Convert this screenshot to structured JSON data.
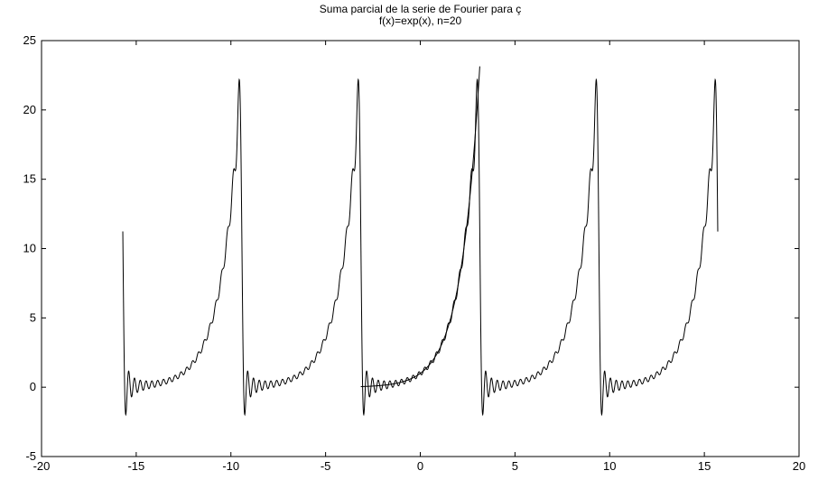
{
  "chart_data": {
    "type": "line",
    "title_lines": [
      "Suma parcial de la serie de Fourier para ç",
      "f(x)=exp(x), n=20"
    ],
    "xlabel": "",
    "ylabel": "",
    "xlim": [
      -20,
      20
    ],
    "ylim": [
      -5,
      25
    ],
    "x_ticks": [
      -20,
      -15,
      -10,
      -5,
      0,
      5,
      10,
      15,
      20
    ],
    "y_ticks": [
      -5,
      0,
      5,
      10,
      15,
      20,
      25
    ],
    "grid": false,
    "series": [
      {
        "kind": "fourier_partial_sum",
        "function": "exp(x)",
        "n": 20,
        "period": 6.2832,
        "x_range": [
          -15.708,
          15.708
        ],
        "color": "#000000"
      },
      {
        "kind": "exact",
        "function": "exp(x)",
        "x_range": [
          -3.1416,
          3.1416
        ],
        "color": "#000000"
      }
    ]
  }
}
